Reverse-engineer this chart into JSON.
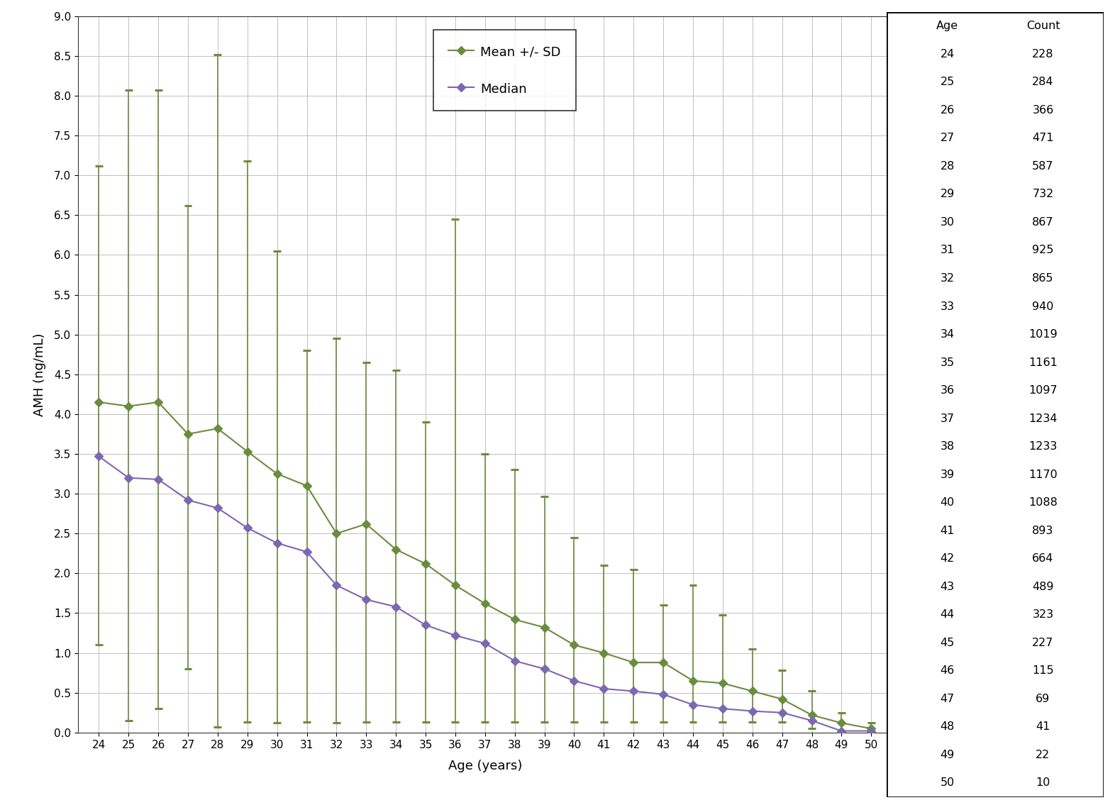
{
  "ages": [
    24,
    25,
    26,
    27,
    28,
    29,
    30,
    31,
    32,
    33,
    34,
    35,
    36,
    37,
    38,
    39,
    40,
    41,
    42,
    43,
    44,
    45,
    46,
    47,
    48,
    49,
    50
  ],
  "mean": [
    4.15,
    4.1,
    4.15,
    3.75,
    3.82,
    3.53,
    3.25,
    3.1,
    2.5,
    2.62,
    2.3,
    2.12,
    1.85,
    1.62,
    1.42,
    1.32,
    1.1,
    1.0,
    0.88,
    0.88,
    0.65,
    0.62,
    0.52,
    0.42,
    0.22,
    0.12,
    0.05
  ],
  "upper": [
    7.12,
    8.07,
    8.07,
    6.62,
    8.52,
    7.18,
    6.05,
    4.8,
    4.95,
    4.65,
    4.55,
    3.9,
    6.45,
    3.5,
    3.3,
    2.97,
    2.45,
    2.1,
    2.05,
    1.6,
    1.85,
    1.48,
    1.05,
    0.78,
    0.52,
    0.25,
    0.12
  ],
  "lower": [
    1.1,
    0.15,
    0.3,
    0.8,
    0.07,
    0.13,
    0.12,
    0.13,
    0.12,
    0.13,
    0.13,
    0.13,
    0.13,
    0.13,
    0.13,
    0.13,
    0.13,
    0.13,
    0.13,
    0.13,
    0.13,
    0.13,
    0.13,
    0.13,
    0.05,
    0.0,
    0.0
  ],
  "median": [
    3.47,
    3.2,
    3.18,
    2.92,
    2.82,
    2.57,
    2.38,
    2.27,
    1.85,
    1.67,
    1.58,
    1.35,
    1.22,
    1.12,
    0.9,
    0.8,
    0.65,
    0.55,
    0.52,
    0.48,
    0.35,
    0.3,
    0.27,
    0.25,
    0.15,
    0.02,
    0.02
  ],
  "counts": [
    228,
    284,
    366,
    471,
    587,
    732,
    867,
    925,
    865,
    940,
    1019,
    1161,
    1097,
    1234,
    1233,
    1170,
    1088,
    893,
    664,
    489,
    323,
    227,
    115,
    69,
    41,
    22,
    10
  ],
  "mean_color": "#6B8C3E",
  "median_color": "#7B68B0",
  "ylabel": "AMH (ng/mL)",
  "xlabel": "Age (years)",
  "ylim_min": 0.0,
  "ylim_max": 9.0,
  "yticks": [
    0.0,
    0.5,
    1.0,
    1.5,
    2.0,
    2.5,
    3.0,
    3.5,
    4.0,
    4.5,
    5.0,
    5.5,
    6.0,
    6.5,
    7.0,
    7.5,
    8.0,
    8.5,
    9.0
  ],
  "legend_mean_label": "Mean +/- SD",
  "legend_median_label": "Median",
  "table_ages": [
    24,
    25,
    26,
    27,
    28,
    29,
    30,
    31,
    32,
    33,
    34,
    35,
    36,
    37,
    38,
    39,
    40,
    41,
    42,
    43,
    44,
    45,
    46,
    47,
    48,
    49,
    50
  ],
  "table_counts": [
    228,
    284,
    366,
    471,
    587,
    732,
    867,
    925,
    865,
    940,
    1019,
    1161,
    1097,
    1234,
    1233,
    1170,
    1088,
    893,
    664,
    489,
    323,
    227,
    115,
    69,
    41,
    22,
    10
  ],
  "table_font_size": 11.5,
  "table_header_font_size": 11.5
}
